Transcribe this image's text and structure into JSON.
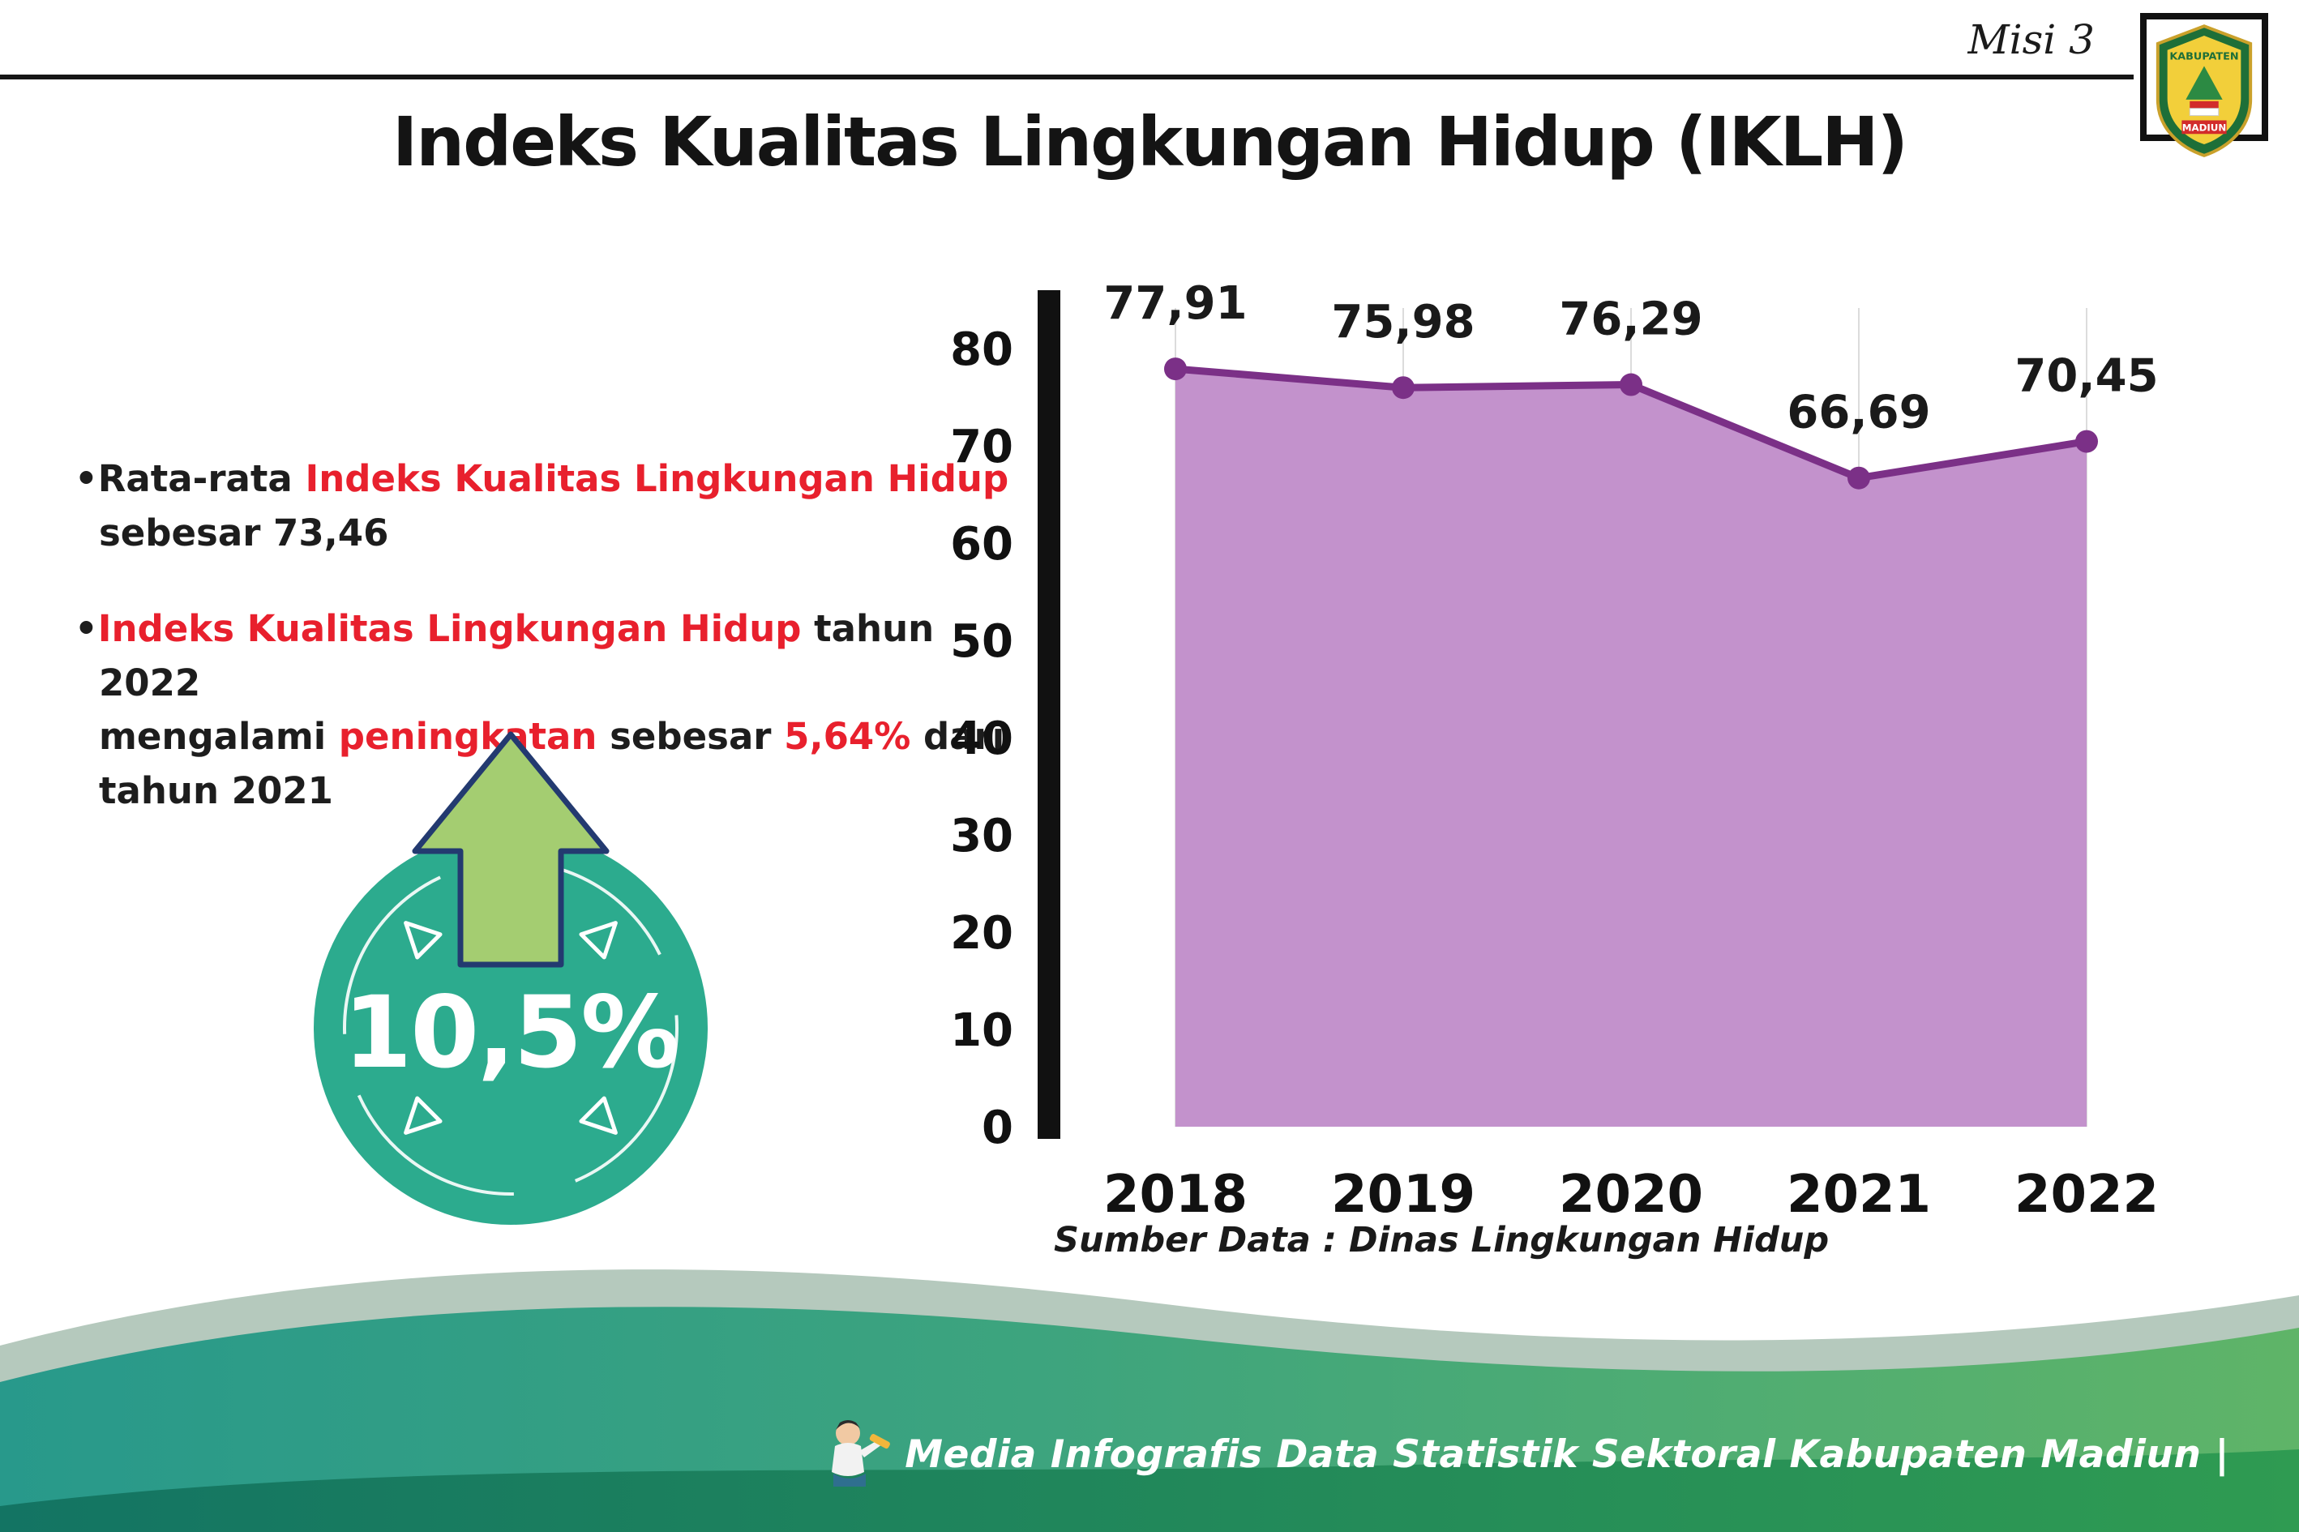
{
  "header": {
    "misi_label": "Misi 3",
    "title": "Indeks Kualitas Lingkungan Hidup (IKLH)",
    "logo_top": "KABUPATEN",
    "logo_bottom": "MADIUN"
  },
  "bullets": {
    "marker": "•",
    "b1": {
      "p1": "Rata-rata ",
      "p2_red": "Indeks Kualitas Lingkungan Hidup",
      "p3": "sebesar 73,46"
    },
    "b2": {
      "p1_red": "Indeks Kualitas Lingkungan Hidup",
      "p2": " tahun 2022",
      "p3": "mengalami ",
      "p4_red": "peningkatan",
      "p5": " sebesar ",
      "p6_red": "5,64%",
      "p7": " dari",
      "p8": "tahun 2021"
    }
  },
  "badge": {
    "value": "10,5%"
  },
  "chart_data": {
    "type": "area",
    "title": "Indeks Kualitas Lingkungan Hidup (IKLH)",
    "categories": [
      "2018",
      "2019",
      "2020",
      "2021",
      "2022"
    ],
    "values": [
      77.91,
      75.98,
      76.29,
      66.69,
      70.45
    ],
    "point_labels": [
      "77,91",
      "75,98",
      "76,29",
      "66,69",
      "70,45"
    ],
    "ylim": [
      0,
      80
    ],
    "yticks": [
      0,
      10,
      20,
      30,
      40,
      50,
      60,
      70,
      80
    ],
    "grid": "vertical-light",
    "legend": "none",
    "line_color": "#7b3087",
    "fill_color": "#c392cc",
    "source": "Sumber Data : Dinas Lingkungan Hidup"
  },
  "footer": {
    "credit": "Media Infografis Data Statistik Sektoral Kabupaten Madiun |"
  }
}
